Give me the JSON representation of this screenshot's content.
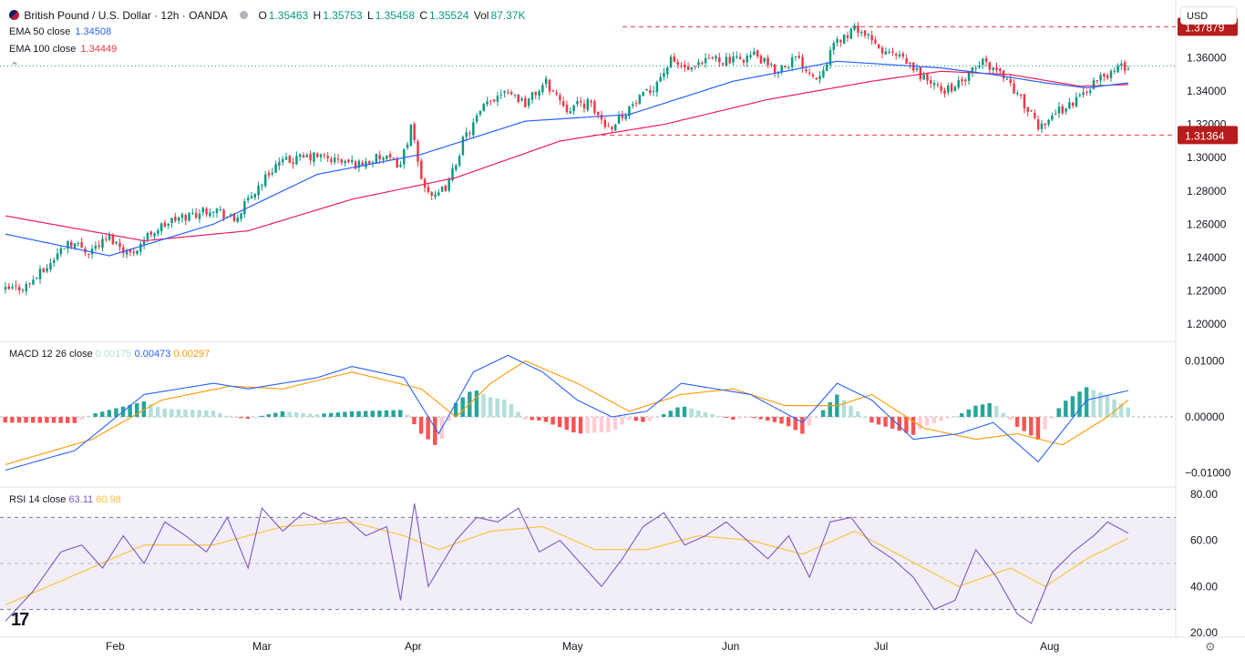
{
  "header": {
    "symbol": "British Pound / U.S. Dollar · 12h · OANDA",
    "open_label": "O",
    "open": "1.35463",
    "high_label": "H",
    "high": "1.35753",
    "low_label": "L",
    "low": "1.35458",
    "close_label": "C",
    "close": "1.35524",
    "vol_label": "Vol",
    "vol": "87.37K",
    "ema50_label": "EMA 50 close",
    "ema50_value": "1.34508",
    "ema100_label": "EMA 100 close",
    "ema100_value": "1.34449",
    "currency": "USD"
  },
  "macd_header": {
    "label": "MACD 12 26 close",
    "hist": "0.00175",
    "macd": "0.00473",
    "signal": "0.00297"
  },
  "rsi_header": {
    "label": "RSI 14 close",
    "rsi": "63.11",
    "ma": "60.98"
  },
  "colors": {
    "up": "#089981",
    "down": "#f23645",
    "ema50": "#2962ff",
    "ema100": "#e91e63",
    "macd_signal": "#ff9800",
    "rsi": "#7e57c2",
    "rsi_ma": "#fbc02d"
  },
  "chart_data": [
    {
      "type": "candlestick",
      "x_ticks": [
        "Feb",
        "Mar",
        "Apr",
        "May",
        "Jun",
        "Jul",
        "Aug"
      ],
      "y_ticks": [
        "1.20000",
        "1.22000",
        "1.24000",
        "1.26000",
        "1.28000",
        "1.30000",
        "1.32000",
        "1.34000",
        "1.36000"
      ],
      "ylim": [
        1.195,
        1.385
      ],
      "price_labels": [
        "1.37879",
        "1.31364"
      ],
      "resistance": 1.37879,
      "support": 1.31364,
      "last_price": 1.35524,
      "close_path": [
        [
          0,
          1.22
        ],
        [
          6,
          1.223
        ],
        [
          12,
          1.234
        ],
        [
          18,
          1.25
        ],
        [
          24,
          1.244
        ],
        [
          30,
          1.252
        ],
        [
          36,
          1.242
        ],
        [
          42,
          1.255
        ],
        [
          48,
          1.262
        ],
        [
          54,
          1.266
        ],
        [
          60,
          1.27
        ],
        [
          66,
          1.262
        ],
        [
          72,
          1.28
        ],
        [
          78,
          1.296
        ],
        [
          84,
          1.299
        ],
        [
          90,
          1.301
        ],
        [
          96,
          1.298
        ],
        [
          102,
          1.296
        ],
        [
          108,
          1.3
        ],
        [
          114,
          1.296
        ],
        [
          117,
          1.318
        ],
        [
          120,
          1.287
        ],
        [
          124,
          1.275
        ],
        [
          128,
          1.285
        ],
        [
          132,
          1.31
        ],
        [
          138,
          1.33
        ],
        [
          144,
          1.342
        ],
        [
          150,
          1.333
        ],
        [
          156,
          1.345
        ],
        [
          162,
          1.33
        ],
        [
          168,
          1.333
        ],
        [
          174,
          1.318
        ],
        [
          180,
          1.33
        ],
        [
          186,
          1.34
        ],
        [
          192,
          1.358
        ],
        [
          198,
          1.352
        ],
        [
          204,
          1.36
        ],
        [
          210,
          1.358
        ],
        [
          216,
          1.362
        ],
        [
          222,
          1.352
        ],
        [
          228,
          1.36
        ],
        [
          234,
          1.348
        ],
        [
          240,
          1.37
        ],
        [
          246,
          1.378
        ],
        [
          252,
          1.365
        ],
        [
          258,
          1.36
        ],
        [
          264,
          1.35
        ],
        [
          270,
          1.34
        ],
        [
          276,
          1.345
        ],
        [
          282,
          1.358
        ],
        [
          288,
          1.35
        ],
        [
          294,
          1.332
        ],
        [
          298,
          1.318
        ],
        [
          302,
          1.326
        ],
        [
          308,
          1.333
        ],
        [
          314,
          1.345
        ],
        [
          320,
          1.353
        ],
        [
          324,
          1.355
        ]
      ],
      "series": [
        {
          "name": "EMA 50 close",
          "points": [
            [
              0,
              1.254
            ],
            [
              30,
              1.241
            ],
            [
              60,
              1.26
            ],
            [
              90,
              1.29
            ],
            [
              120,
              1.302
            ],
            [
              150,
              1.322
            ],
            [
              180,
              1.326
            ],
            [
              210,
              1.346
            ],
            [
              240,
              1.358
            ],
            [
              255,
              1.356
            ],
            [
              270,
              1.354
            ],
            [
              285,
              1.35
            ],
            [
              300,
              1.345
            ],
            [
              312,
              1.342
            ],
            [
              324,
              1.345
            ]
          ]
        },
        {
          "name": "EMA 100 close",
          "points": [
            [
              0,
              1.265
            ],
            [
              40,
              1.25
            ],
            [
              70,
              1.256
            ],
            [
              100,
              1.275
            ],
            [
              130,
              1.288
            ],
            [
              160,
              1.31
            ],
            [
              190,
              1.32
            ],
            [
              220,
              1.335
            ],
            [
              250,
              1.346
            ],
            [
              270,
              1.352
            ],
            [
              290,
              1.35
            ],
            [
              310,
              1.343
            ],
            [
              324,
              1.344
            ]
          ]
        }
      ]
    },
    {
      "type": "macd",
      "y_ticks": [
        "0.01000",
        "0.00000",
        "−0.01000"
      ],
      "ylim": [
        -0.0125,
        0.013
      ],
      "macd": [
        [
          0,
          -0.0095
        ],
        [
          20,
          -0.006
        ],
        [
          40,
          0.004
        ],
        [
          60,
          0.006
        ],
        [
          70,
          0.005
        ],
        [
          90,
          0.007
        ],
        [
          100,
          0.009
        ],
        [
          115,
          0.007
        ],
        [
          125,
          -0.003
        ],
        [
          135,
          0.008
        ],
        [
          145,
          0.011
        ],
        [
          155,
          0.008
        ],
        [
          165,
          0.003
        ],
        [
          175,
          0.0
        ],
        [
          185,
          0.001
        ],
        [
          195,
          0.006
        ],
        [
          205,
          0.005
        ],
        [
          215,
          0.004
        ],
        [
          230,
          -0.001
        ],
        [
          240,
          0.006
        ],
        [
          250,
          0.003
        ],
        [
          262,
          -0.004
        ],
        [
          275,
          -0.003
        ],
        [
          285,
          -0.001
        ],
        [
          298,
          -0.008
        ],
        [
          312,
          0.003
        ],
        [
          324,
          0.0047
        ]
      ],
      "signal": [
        [
          0,
          -0.0085
        ],
        [
          25,
          -0.004
        ],
        [
          45,
          0.003
        ],
        [
          65,
          0.0055
        ],
        [
          80,
          0.005
        ],
        [
          100,
          0.008
        ],
        [
          120,
          0.005
        ],
        [
          130,
          0.0
        ],
        [
          140,
          0.006
        ],
        [
          150,
          0.01
        ],
        [
          165,
          0.006
        ],
        [
          180,
          0.001
        ],
        [
          195,
          0.004
        ],
        [
          210,
          0.005
        ],
        [
          225,
          0.002
        ],
        [
          240,
          0.002
        ],
        [
          250,
          0.004
        ],
        [
          265,
          -0.002
        ],
        [
          280,
          -0.004
        ],
        [
          292,
          -0.003
        ],
        [
          305,
          -0.005
        ],
        [
          318,
          0.0
        ],
        [
          324,
          0.003
        ]
      ],
      "histogram_last": 0.00175
    },
    {
      "type": "rsi",
      "y_ticks": [
        "80.00",
        "60.00",
        "40.00",
        "20.00"
      ],
      "ylim": [
        18,
        82
      ],
      "bands": [
        30,
        70
      ],
      "mid": 50,
      "rsi": [
        [
          0,
          25
        ],
        [
          8,
          38
        ],
        [
          16,
          55
        ],
        [
          22,
          58
        ],
        [
          28,
          48
        ],
        [
          34,
          62
        ],
        [
          40,
          50
        ],
        [
          46,
          68
        ],
        [
          52,
          62
        ],
        [
          58,
          55
        ],
        [
          64,
          70
        ],
        [
          70,
          48
        ],
        [
          74,
          74
        ],
        [
          80,
          64
        ],
        [
          86,
          72
        ],
        [
          92,
          68
        ],
        [
          98,
          70
        ],
        [
          104,
          62
        ],
        [
          110,
          66
        ],
        [
          114,
          34
        ],
        [
          118,
          76
        ],
        [
          122,
          40
        ],
        [
          126,
          50
        ],
        [
          130,
          60
        ],
        [
          136,
          70
        ],
        [
          142,
          68
        ],
        [
          148,
          74
        ],
        [
          154,
          55
        ],
        [
          160,
          60
        ],
        [
          166,
          50
        ],
        [
          172,
          40
        ],
        [
          178,
          52
        ],
        [
          184,
          66
        ],
        [
          190,
          72
        ],
        [
          196,
          58
        ],
        [
          202,
          62
        ],
        [
          208,
          68
        ],
        [
          214,
          60
        ],
        [
          220,
          52
        ],
        [
          226,
          62
        ],
        [
          232,
          44
        ],
        [
          238,
          68
        ],
        [
          244,
          70
        ],
        [
          250,
          58
        ],
        [
          256,
          52
        ],
        [
          262,
          44
        ],
        [
          268,
          30
        ],
        [
          274,
          34
        ],
        [
          280,
          56
        ],
        [
          286,
          44
        ],
        [
          292,
          28
        ],
        [
          296,
          24
        ],
        [
          302,
          46
        ],
        [
          308,
          55
        ],
        [
          314,
          62
        ],
        [
          318,
          68
        ],
        [
          324,
          63.11
        ]
      ],
      "rsi_ma": [
        [
          0,
          32
        ],
        [
          20,
          45
        ],
        [
          40,
          58
        ],
        [
          60,
          58
        ],
        [
          80,
          66
        ],
        [
          100,
          68
        ],
        [
          115,
          62
        ],
        [
          125,
          56
        ],
        [
          140,
          64
        ],
        [
          155,
          66
        ],
        [
          170,
          56
        ],
        [
          185,
          56
        ],
        [
          200,
          62
        ],
        [
          215,
          60
        ],
        [
          230,
          54
        ],
        [
          245,
          64
        ],
        [
          260,
          52
        ],
        [
          275,
          40
        ],
        [
          290,
          48
        ],
        [
          300,
          40
        ],
        [
          312,
          52
        ],
        [
          324,
          60.98
        ]
      ]
    }
  ]
}
